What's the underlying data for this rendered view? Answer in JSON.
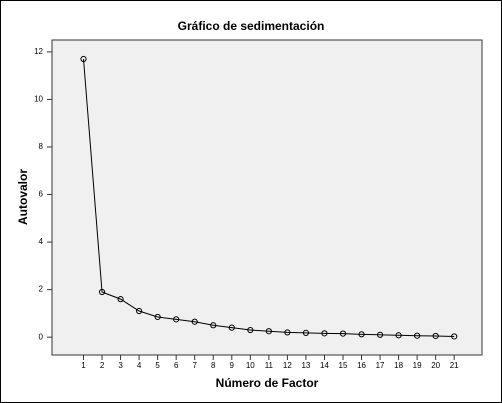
{
  "chart_data": {
    "type": "line",
    "title": "Gráfico de sedimentación",
    "x_label": "Número de Factor",
    "y_label": "Autovalor",
    "x": [
      1,
      2,
      3,
      4,
      5,
      6,
      7,
      8,
      9,
      10,
      11,
      12,
      13,
      14,
      15,
      16,
      17,
      18,
      19,
      20,
      21
    ],
    "values": [
      11.7,
      1.9,
      1.6,
      1.1,
      0.85,
      0.75,
      0.65,
      0.5,
      0.4,
      0.3,
      0.25,
      0.2,
      0.18,
      0.16,
      0.15,
      0.12,
      0.1,
      0.08,
      0.06,
      0.05,
      0.03
    ],
    "color": "#000000",
    "xlim": [
      -0.7,
      22.5
    ],
    "xticks": [
      1,
      2,
      3,
      4,
      5,
      6,
      7,
      8,
      9,
      10,
      11,
      12,
      13,
      14,
      15,
      16,
      17,
      18,
      19,
      20,
      21
    ],
    "ylim": [
      -0.75,
      12.5
    ],
    "yticks": [
      0,
      2,
      4,
      6,
      8,
      10,
      12
    ],
    "grid": false,
    "markers": "open-circle"
  }
}
